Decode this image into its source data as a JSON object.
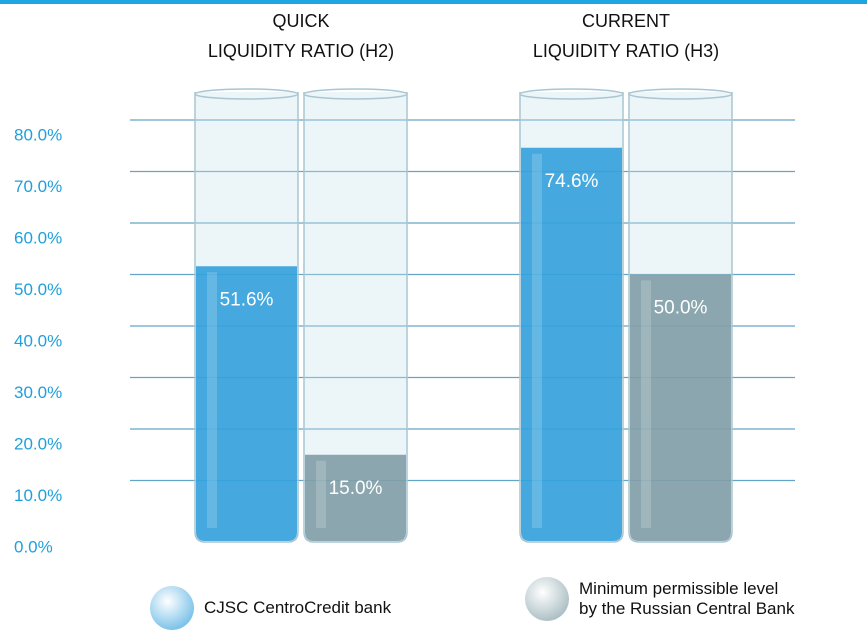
{
  "chart_data": {
    "type": "bar",
    "categories": [
      [
        "QUICK",
        "LIQUIDITY RATIO (H2)"
      ],
      [
        "CURRENT",
        "LIQUIDITY RATIO (H3)"
      ]
    ],
    "series": [
      {
        "name": "CJSC CentroCredit bank",
        "color": "#2e9edb",
        "values": [
          51.6,
          74.6
        ],
        "value_labels": [
          "51.6%",
          "74.6%"
        ]
      },
      {
        "name": "Minimum permissible level by the Russian Central Bank",
        "color": "#7d9ba4",
        "values": [
          15.0,
          50.0
        ],
        "value_labels": [
          "15.0%",
          "50.0%"
        ]
      }
    ],
    "ylim": [
      0,
      80
    ],
    "yticks": [
      {
        "value": 0,
        "label": "0.0%"
      },
      {
        "value": 10,
        "label": "10.0%"
      },
      {
        "value": 20,
        "label": "20.0%"
      },
      {
        "value": 30,
        "label": "30.0%"
      },
      {
        "value": 40,
        "label": "40.0%"
      },
      {
        "value": 50,
        "label": "50.0%"
      },
      {
        "value": 60,
        "label": "60.0%"
      },
      {
        "value": 70,
        "label": "70.0%"
      },
      {
        "value": 80,
        "label": "80.0%"
      }
    ],
    "grid": true
  }
}
